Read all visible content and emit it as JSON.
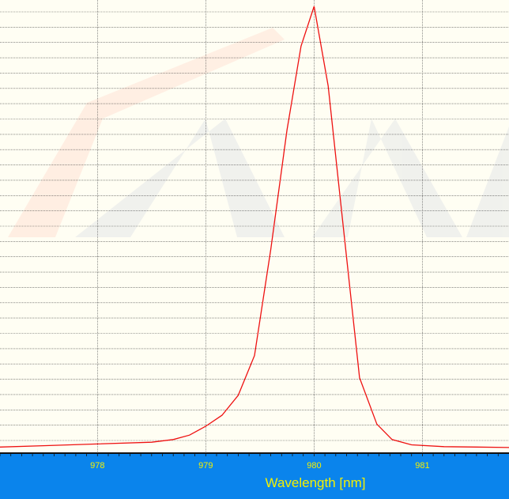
{
  "colors": {
    "background": "#fffef3",
    "grid": "#444444",
    "series": "#ee1111",
    "axis_band": "#0a84ec",
    "axis_text": "#f4f000",
    "watermark_red": "#ff2a1a",
    "watermark_blue": "#3f4fa8"
  },
  "chart_data": {
    "type": "line",
    "xlabel": "Wavelength [nm]",
    "ylabel": "",
    "title": "",
    "xlim": [
      977.1,
      981.8
    ],
    "ylim": [
      0,
      1.0
    ],
    "x_ticks": [
      978,
      979,
      980,
      981
    ],
    "x_tick_labels": [
      "978",
      "979",
      "980",
      "981"
    ],
    "grid": true,
    "grid_horizontal_count": 29,
    "series": [
      {
        "x": [
          977.1,
          977.5,
          978.0,
          978.5,
          978.7,
          978.85,
          979.0,
          979.15,
          979.3,
          979.45,
          979.6,
          979.75,
          979.88,
          980.0,
          980.13,
          980.27,
          980.42,
          980.58,
          980.72,
          980.9,
          981.2,
          981.5,
          981.8
        ],
        "y": [
          0.003,
          0.006,
          0.01,
          0.014,
          0.02,
          0.03,
          0.05,
          0.075,
          0.12,
          0.21,
          0.45,
          0.72,
          0.91,
          1.0,
          0.82,
          0.5,
          0.16,
          0.055,
          0.02,
          0.008,
          0.004,
          0.003,
          0.002
        ]
      }
    ]
  }
}
